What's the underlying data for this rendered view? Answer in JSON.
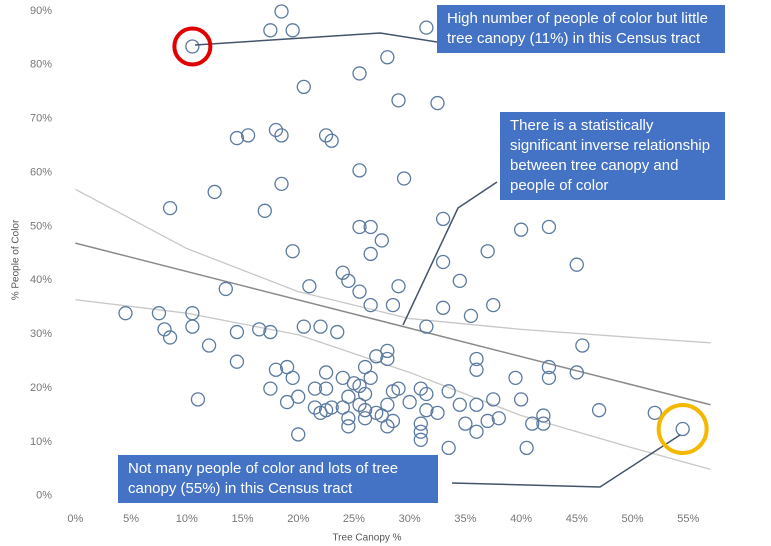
{
  "chart_data": {
    "type": "scatter",
    "x_label": "Tree Canopy %",
    "y_label": "% People of Color",
    "color": "#5b7aa0",
    "xlim": [
      -1.2,
      58.3
    ],
    "ylim": [
      -1.9,
      92.2
    ],
    "xticks": [
      {
        "value": 0,
        "label": "0%"
      },
      {
        "value": 5,
        "label": "5%"
      },
      {
        "value": 10,
        "label": "10%"
      },
      {
        "value": 15,
        "label": "15%"
      },
      {
        "value": 20,
        "label": "20%"
      },
      {
        "value": 25,
        "label": "25%"
      },
      {
        "value": 30,
        "label": "30%"
      },
      {
        "value": 35,
        "label": "35%"
      },
      {
        "value": 40,
        "label": "40%"
      },
      {
        "value": 45,
        "label": "45%"
      },
      {
        "value": 50,
        "label": "50%"
      },
      {
        "value": 55,
        "label": "55%"
      }
    ],
    "yticks": [
      {
        "value": 0,
        "label": "0%"
      },
      {
        "value": 10,
        "label": "10%"
      },
      {
        "value": 20,
        "label": "20%"
      },
      {
        "value": 30,
        "label": "30%"
      },
      {
        "value": 40,
        "label": "40%"
      },
      {
        "value": 50,
        "label": "50%"
      },
      {
        "value": 60,
        "label": "60%"
      },
      {
        "value": 70,
        "label": "70%"
      },
      {
        "value": 80,
        "label": "80%"
      },
      {
        "value": 90,
        "label": "90%"
      }
    ],
    "x": [
      10.5,
      17.5,
      19.5,
      18.5,
      28,
      31.5,
      25.5,
      20.5,
      29,
      32.5,
      18,
      18.5,
      15.5,
      14.5,
      22.5,
      23,
      12.5,
      8.5,
      17,
      18.5,
      25.5,
      29.5,
      33,
      25.5,
      26.5,
      27.5,
      26.5,
      33,
      37,
      40,
      42.5,
      45,
      19.5,
      13.5,
      21,
      24,
      24.5,
      25.5,
      26.5,
      29,
      28.5,
      34.5,
      33,
      35.5,
      37.5,
      31.5,
      4.5,
      7.5,
      10.5,
      8,
      8.5,
      10.5,
      12,
      14.5,
      16.5,
      17.5,
      20.5,
      22,
      23.5,
      14.5,
      11,
      18,
      19,
      19.5,
      21.5,
      17.5,
      19,
      20,
      22.5,
      22.5,
      24,
      25,
      25.5,
      26,
      26.5,
      27,
      28,
      28,
      28.5,
      29,
      31,
      31.5,
      33.5,
      34.5,
      36,
      36,
      36,
      37.5,
      38,
      37,
      39.5,
      40,
      42.5,
      42.5,
      45,
      45.5,
      47,
      52,
      54.5,
      42,
      41,
      42,
      40.5,
      36,
      35,
      33.5,
      31,
      31,
      31,
      32.5,
      31.5,
      30,
      28,
      27,
      26,
      26,
      27.5,
      28,
      28.5,
      24.5,
      24.5,
      24,
      23,
      22.5,
      21.5,
      20,
      22,
      24.5,
      25.5,
      26
    ],
    "values": [
      84.5,
      87.5,
      87.5,
      91,
      82.5,
      88,
      79.5,
      77,
      74.5,
      74,
      69,
      68,
      68,
      67.5,
      68,
      67,
      57.5,
      54.5,
      54,
      59,
      61.5,
      60,
      52.5,
      51,
      51,
      48.5,
      46,
      44.5,
      46.5,
      50.5,
      51,
      44,
      46.5,
      39.5,
      40,
      42.5,
      41,
      39,
      36.5,
      40,
      36.5,
      41,
      36,
      34.5,
      36.5,
      32.5,
      35,
      35,
      35,
      32,
      30.5,
      32.5,
      29,
      31.5,
      32,
      31.5,
      32.5,
      32.5,
      31.5,
      26,
      19,
      24.5,
      25,
      23,
      21,
      21,
      18.5,
      19.5,
      24,
      21,
      23,
      22,
      21.5,
      25,
      23,
      27,
      26.5,
      28,
      20.5,
      21,
      21,
      20,
      20.5,
      18,
      18,
      24.5,
      26.5,
      19,
      15.5,
      15,
      23,
      19,
      23,
      25,
      24,
      29,
      17,
      16.5,
      13.5,
      16,
      14.5,
      14.5,
      10,
      13,
      14.5,
      10,
      14.5,
      13,
      11.5,
      16.5,
      17,
      18.5,
      18,
      16.5,
      15.5,
      17,
      16,
      14,
      15,
      14,
      15.5,
      17.5,
      17.5,
      17,
      17.5,
      12.5,
      16.5,
      19.5,
      18,
      20
    ],
    "trend_lines": [
      {
        "x": [
          0,
          10,
          20,
          30,
          40,
          50,
          57
        ],
        "values": [
          58,
          47,
          39,
          34,
          32,
          30.5,
          29.5
        ],
        "color": "#c8c8c8"
      },
      {
        "x": [
          0,
          57
        ],
        "values": [
          48,
          18
        ],
        "color": "#8a8a8a"
      },
      {
        "x": [
          0,
          10,
          20,
          30,
          40,
          50,
          57
        ],
        "values": [
          37.5,
          35,
          31,
          24,
          16,
          10,
          6
        ],
        "color": "#c8c8c8"
      }
    ],
    "annotations": [
      {
        "text": "High number of people of color but little tree canopy (11%) in this Census tract"
      },
      {
        "text": "There is a statistically significant inverse relationship between tree canopy and people of color"
      },
      {
        "text": "Not many people of color and lots of tree canopy (55%) in this Census tract"
      }
    ]
  }
}
